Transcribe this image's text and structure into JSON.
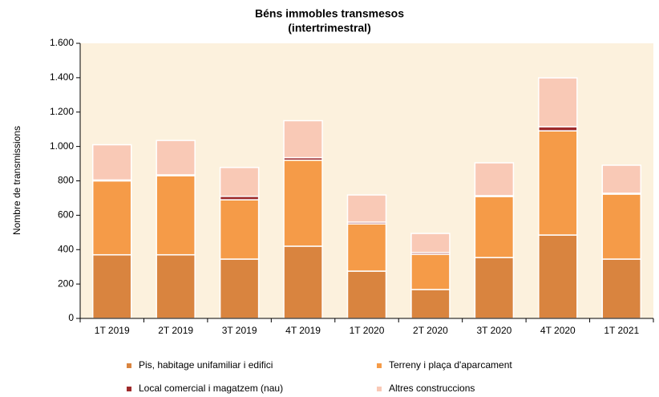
{
  "chart_data": {
    "type": "stacked_bar",
    "title": "Béns immobles transmesos",
    "subtitle": "(intertrimestral)",
    "y_label": "Nombre de transmissions",
    "categories": [
      "1T 2019",
      "2T 2019",
      "3T 2019",
      "4T 2019",
      "1T 2020",
      "2T 2020",
      "3T 2020",
      "4T 2020",
      "1T 2021"
    ],
    "series": [
      {
        "name": "Pis, habitage unifamiliar i edifici",
        "color": "#d9843f",
        "values": [
          370,
          370,
          345,
          420,
          275,
          168,
          354,
          485,
          345
        ]
      },
      {
        "name": "Terreny i plaça d'aparcament",
        "color": "#f59b48",
        "values": [
          430,
          460,
          345,
          500,
          275,
          205,
          355,
          606,
          378
        ]
      },
      {
        "name": "Local comercial i magatzem (nau)",
        "color": "#9e2a2b",
        "values": [
          5,
          5,
          20,
          15,
          10,
          10,
          5,
          24,
          5
        ]
      },
      {
        "name": "Altres construccions",
        "color": "#f9c9b6",
        "values": [
          205,
          200,
          168,
          215,
          158,
          111,
          191,
          284,
          163
        ]
      }
    ],
    "ylim": [
      0,
      1600
    ],
    "yticks": [
      0,
      200,
      400,
      600,
      800,
      {
        "value": 1000,
        "label": "1.000"
      },
      {
        "value": 1200,
        "label": "1.200"
      },
      {
        "value": 1400,
        "label": "1.400"
      },
      {
        "value": 1600,
        "label": "1.600"
      }
    ],
    "plot_background": "#fcf1dd",
    "legend": "bottom"
  }
}
